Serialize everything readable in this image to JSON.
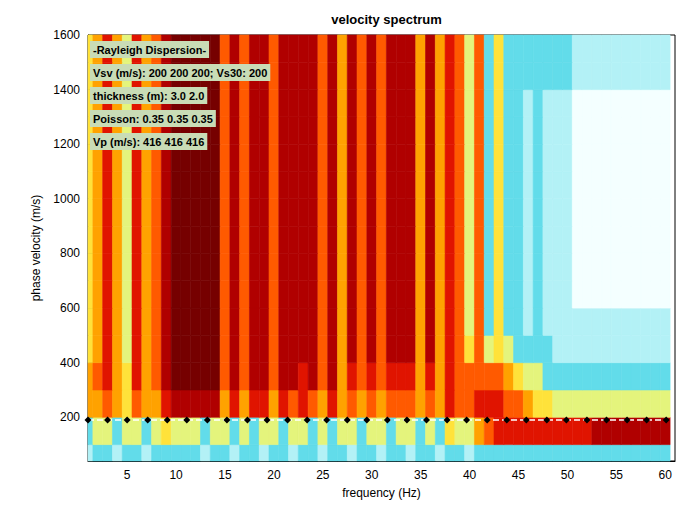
{
  "chart_data": {
    "type": "heatmap",
    "title": "velocity spectrum",
    "x_label": "frequency (Hz)",
    "y_label": "phase velocity (m/s)",
    "annotations": [
      "-Rayleigh Dispersion-",
      "Vsv (m/s): 200 200 200; Vs30: 200",
      "thickness (m): 3.0 2.0",
      "Poisson: 0.35 0.35 0.35",
      "Vp (m/s): 416 416 416"
    ],
    "xlim": [
      1,
      61
    ],
    "xticks": [
      5,
      10,
      15,
      20,
      25,
      30,
      35,
      40,
      45,
      50,
      55,
      60
    ],
    "ylim": [
      40,
      1600
    ],
    "yticks": [
      200,
      400,
      600,
      800,
      1000,
      1200,
      1400,
      1600
    ],
    "grid": false,
    "zlim": [
      0,
      9
    ],
    "x": [
      1,
      2,
      3,
      4,
      5,
      6,
      7,
      8,
      9,
      10,
      11,
      12,
      13,
      14,
      15,
      16,
      17,
      18,
      19,
      20,
      21,
      22,
      23,
      24,
      25,
      26,
      27,
      28,
      29,
      30,
      31,
      32,
      33,
      34,
      35,
      36,
      37,
      38,
      39,
      40,
      41,
      42,
      43,
      44,
      45,
      46,
      47,
      48,
      49,
      50,
      51,
      52,
      53,
      54,
      55,
      56,
      57,
      58,
      59,
      60
    ],
    "y": [
      50,
      150,
      250,
      350,
      450,
      550,
      650,
      750,
      850,
      950,
      1050,
      1150,
      1250,
      1350,
      1450,
      1550
    ],
    "z": [
      [
        1,
        2,
        2,
        1,
        2,
        2,
        1,
        2,
        2,
        2,
        2,
        2,
        1,
        2,
        2,
        1,
        2,
        2,
        1,
        2,
        2,
        1,
        2,
        2,
        1,
        2,
        2,
        1,
        2,
        2,
        1,
        2,
        2,
        1,
        2,
        2,
        1,
        2,
        2,
        1,
        2,
        2,
        2,
        2,
        2,
        2,
        2,
        2,
        2,
        2,
        2,
        2,
        2,
        2,
        2,
        2,
        2,
        2,
        2,
        2
      ],
      [
        2,
        3,
        3,
        2,
        3,
        3,
        2,
        3,
        4,
        3,
        3,
        3,
        2,
        3,
        3,
        2,
        3,
        2,
        3,
        3,
        2,
        3,
        3,
        2,
        3,
        2,
        3,
        3,
        2,
        3,
        3,
        2,
        3,
        3,
        2,
        3,
        2,
        4,
        3,
        3,
        5,
        6,
        7,
        7,
        7,
        7,
        7,
        7,
        7,
        7,
        7,
        7,
        8,
        8,
        8,
        8,
        8,
        8,
        8,
        8
      ],
      [
        5,
        5,
        6,
        5,
        4,
        6,
        5,
        5,
        7,
        8,
        8,
        8,
        8,
        8,
        5,
        7,
        5,
        7,
        7,
        5,
        7,
        6,
        7,
        6,
        5,
        7,
        5,
        6,
        5,
        6,
        5,
        6,
        6,
        6,
        5,
        6,
        5,
        7,
        6,
        6,
        7,
        7,
        7,
        6,
        6,
        5,
        4,
        4,
        3,
        3,
        3,
        3,
        3,
        3,
        3,
        3,
        3,
        3,
        3,
        3
      ],
      [
        5,
        6,
        7,
        5,
        4,
        7,
        5,
        6,
        8,
        9,
        9,
        9,
        9,
        9,
        6,
        8,
        6,
        8,
        8,
        6,
        8,
        8,
        7,
        8,
        6,
        8,
        5,
        7,
        6,
        7,
        6,
        7,
        7,
        7,
        5,
        7,
        5,
        7,
        6,
        6,
        6,
        6,
        6,
        5,
        4,
        3,
        3,
        2,
        2,
        2,
        2,
        2,
        2,
        2,
        2,
        2,
        2,
        2,
        2,
        2
      ],
      [
        4,
        5,
        7,
        5,
        3,
        7,
        5,
        6,
        8,
        9,
        9,
        9,
        9,
        9,
        6,
        8,
        6,
        8,
        8,
        6,
        8,
        8,
        8,
        8,
        6,
        8,
        5,
        8,
        6,
        8,
        6,
        8,
        8,
        8,
        5,
        8,
        5,
        7,
        6,
        4,
        6,
        3,
        4,
        3,
        2,
        2,
        2,
        2,
        1,
        1,
        1,
        1,
        1,
        1,
        1,
        1,
        1,
        1,
        1,
        1
      ],
      [
        4,
        5,
        7,
        5,
        3,
        7,
        5,
        6,
        8,
        9,
        9,
        9,
        9,
        9,
        6,
        8,
        6,
        8,
        8,
        6,
        8,
        8,
        8,
        8,
        6,
        8,
        5,
        8,
        6,
        8,
        6,
        8,
        8,
        8,
        5,
        8,
        5,
        7,
        6,
        3,
        6,
        2,
        4,
        2,
        2,
        1,
        2,
        1,
        1,
        1,
        1,
        1,
        1,
        1,
        1,
        1,
        1,
        1,
        1,
        1
      ],
      [
        4,
        5,
        7,
        5,
        3,
        7,
        5,
        6,
        8,
        9,
        9,
        9,
        9,
        9,
        6,
        8,
        6,
        8,
        8,
        6,
        8,
        8,
        8,
        8,
        6,
        8,
        5,
        8,
        6,
        8,
        6,
        8,
        8,
        8,
        5,
        8,
        5,
        7,
        6,
        3,
        6,
        2,
        4,
        2,
        2,
        1,
        2,
        1,
        1,
        1,
        0,
        0,
        0,
        0,
        0,
        0,
        0,
        0,
        0,
        0
      ],
      [
        4,
        5,
        7,
        5,
        3,
        7,
        5,
        6,
        8,
        9,
        9,
        9,
        9,
        9,
        6,
        8,
        6,
        8,
        8,
        6,
        8,
        8,
        8,
        8,
        6,
        8,
        5,
        8,
        6,
        8,
        6,
        8,
        8,
        8,
        5,
        8,
        5,
        7,
        6,
        3,
        6,
        2,
        4,
        2,
        2,
        1,
        2,
        1,
        1,
        1,
        0,
        0,
        0,
        0,
        0,
        0,
        0,
        0,
        0,
        0
      ],
      [
        4,
        5,
        7,
        5,
        3,
        7,
        5,
        6,
        8,
        9,
        9,
        9,
        9,
        9,
        6,
        8,
        6,
        8,
        8,
        6,
        8,
        8,
        8,
        8,
        6,
        8,
        5,
        8,
        6,
        8,
        6,
        8,
        8,
        8,
        5,
        8,
        5,
        7,
        6,
        3,
        6,
        2,
        4,
        2,
        2,
        1,
        2,
        1,
        1,
        1,
        0,
        0,
        0,
        0,
        0,
        0,
        0,
        0,
        0,
        0
      ],
      [
        4,
        5,
        7,
        5,
        3,
        7,
        5,
        6,
        8,
        9,
        9,
        9,
        9,
        9,
        6,
        8,
        6,
        8,
        8,
        6,
        8,
        8,
        8,
        8,
        6,
        8,
        5,
        8,
        6,
        8,
        6,
        8,
        8,
        8,
        5,
        8,
        5,
        7,
        6,
        3,
        6,
        2,
        4,
        2,
        2,
        1,
        2,
        1,
        1,
        1,
        0,
        0,
        0,
        0,
        0,
        0,
        0,
        0,
        0,
        0
      ],
      [
        4,
        5,
        7,
        5,
        3,
        7,
        5,
        6,
        8,
        9,
        9,
        9,
        9,
        9,
        6,
        8,
        6,
        8,
        8,
        6,
        8,
        8,
        8,
        8,
        6,
        8,
        5,
        8,
        6,
        8,
        6,
        8,
        8,
        8,
        5,
        8,
        5,
        7,
        6,
        3,
        6,
        2,
        4,
        2,
        2,
        1,
        2,
        1,
        1,
        1,
        0,
        0,
        0,
        0,
        0,
        0,
        0,
        0,
        0,
        0
      ],
      [
        4,
        5,
        7,
        5,
        3,
        7,
        5,
        6,
        8,
        9,
        9,
        9,
        9,
        9,
        6,
        8,
        6,
        8,
        8,
        6,
        8,
        8,
        8,
        8,
        6,
        8,
        5,
        8,
        6,
        8,
        6,
        8,
        8,
        8,
        5,
        8,
        5,
        7,
        6,
        3,
        6,
        2,
        4,
        2,
        2,
        1,
        2,
        1,
        1,
        1,
        0,
        0,
        0,
        0,
        0,
        0,
        0,
        0,
        0,
        0
      ],
      [
        4,
        5,
        7,
        5,
        3,
        7,
        5,
        6,
        8,
        9,
        9,
        9,
        9,
        9,
        6,
        8,
        6,
        8,
        8,
        6,
        8,
        8,
        8,
        8,
        6,
        8,
        5,
        8,
        6,
        8,
        6,
        8,
        8,
        8,
        5,
        8,
        5,
        7,
        6,
        3,
        6,
        2,
        4,
        2,
        2,
        1,
        2,
        1,
        1,
        1,
        0,
        0,
        0,
        0,
        0,
        0,
        0,
        0,
        0,
        0
      ],
      [
        4,
        5,
        7,
        5,
        3,
        7,
        5,
        6,
        8,
        9,
        9,
        9,
        9,
        9,
        6,
        8,
        6,
        8,
        8,
        6,
        8,
        8,
        8,
        8,
        6,
        8,
        5,
        8,
        6,
        8,
        6,
        8,
        8,
        8,
        5,
        8,
        5,
        7,
        6,
        3,
        6,
        2,
        4,
        2,
        2,
        1,
        2,
        1,
        1,
        1,
        0,
        0,
        0,
        0,
        0,
        0,
        0,
        0,
        0,
        0
      ],
      [
        4,
        5,
        7,
        5,
        3,
        7,
        5,
        6,
        8,
        9,
        9,
        9,
        9,
        9,
        6,
        8,
        6,
        8,
        8,
        6,
        8,
        8,
        8,
        8,
        6,
        8,
        5,
        8,
        6,
        8,
        6,
        8,
        8,
        8,
        5,
        8,
        5,
        7,
        6,
        3,
        6,
        2,
        4,
        2,
        2,
        2,
        2,
        2,
        2,
        2,
        1,
        1,
        1,
        1,
        1,
        1,
        1,
        1,
        1,
        1
      ],
      [
        4,
        5,
        7,
        5,
        3,
        7,
        5,
        6,
        8,
        9,
        9,
        9,
        9,
        9,
        6,
        8,
        6,
        8,
        8,
        6,
        8,
        8,
        8,
        8,
        6,
        8,
        5,
        8,
        6,
        8,
        6,
        8,
        8,
        8,
        5,
        8,
        5,
        7,
        6,
        3,
        6,
        2,
        4,
        2,
        2,
        2,
        2,
        2,
        2,
        2,
        1,
        1,
        1,
        1,
        1,
        1,
        1,
        1,
        1,
        1
      ]
    ],
    "dispersion": {
      "type": "line",
      "marker": "diamond",
      "line_style": "dashed",
      "color": "#000000",
      "x": [
        1,
        3,
        5,
        7.1,
        9.1,
        11.1,
        13.2,
        15.2,
        17.3,
        19.3,
        21.4,
        23.4,
        25.4,
        27.5,
        29.5,
        31.6,
        33.6,
        35.6,
        37.7,
        39.7,
        41.8,
        43.8,
        45.8,
        47.9,
        49.9,
        52.0,
        54.0,
        56.1,
        58.1,
        60.1
      ],
      "values": [
        190,
        190,
        190,
        190,
        190,
        190,
        190,
        190,
        190,
        190,
        190,
        190,
        190,
        190,
        190,
        190,
        190,
        190,
        190,
        190,
        190,
        190,
        190,
        190,
        190,
        190,
        190,
        190,
        190,
        190
      ]
    }
  }
}
